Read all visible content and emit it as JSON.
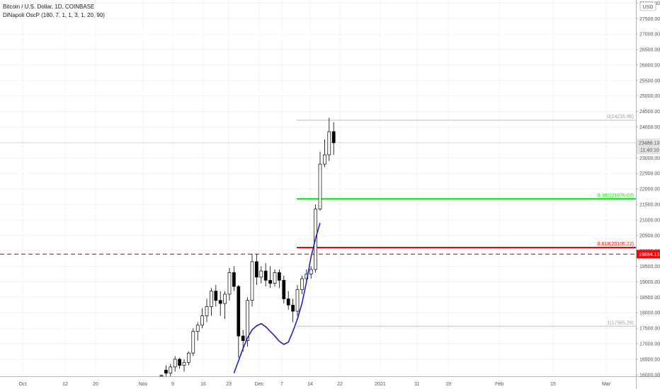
{
  "header": {
    "title": "Bitcoin / U.S. Dollar, 1D, COINBASE",
    "indicator": "DiNapoli OscP (180, 7, 1, 1, 3, 1, 20, 90)"
  },
  "price_axis": {
    "currency": "USD",
    "last_price": "23488.13",
    "countdown": "11:40:10",
    "level_price": "19894.13"
  },
  "colors": {
    "candle_up": "#ffffff",
    "candle_down": "#000000",
    "fib_top": "#bdbdbd",
    "fib_382": "#00e600",
    "fib_618": "#ff0000",
    "level_dashed": "#ff0000",
    "oscillator": "#1f1fd0",
    "grid": "#f0f3fa"
  },
  "chart_data": {
    "type": "candlestick",
    "y_range": [
      15950,
      28100
    ],
    "y_ticks": [
      16000,
      16500,
      17000,
      17500,
      18000,
      18500,
      19000,
      19500,
      20000,
      20500,
      21000,
      21500,
      22000,
      22500,
      23000,
      23500,
      24000,
      24500,
      25000,
      25500,
      26000,
      26500,
      27000,
      27500,
      28000
    ],
    "x_ticks": [
      "Oct",
      "12",
      "20",
      "Nov",
      "9",
      "16",
      "23",
      "Dec",
      "7",
      "14",
      "22",
      "2021",
      "11",
      "19",
      "Feb",
      "15",
      "Mar"
    ],
    "candles": [
      {
        "o": 15950,
        "h": 16000,
        "l": 15950,
        "c": 15980
      },
      {
        "o": 16150,
        "h": 16300,
        "l": 15950,
        "c": 16050
      },
      {
        "o": 16050,
        "h": 16350,
        "l": 15950,
        "c": 16250
      },
      {
        "o": 16250,
        "h": 16600,
        "l": 16100,
        "c": 16500
      },
      {
        "o": 16500,
        "h": 16550,
        "l": 16200,
        "c": 16300
      },
      {
        "o": 16300,
        "h": 16500,
        "l": 16100,
        "c": 16400
      },
      {
        "o": 16400,
        "h": 16750,
        "l": 16300,
        "c": 16700
      },
      {
        "o": 16700,
        "h": 17500,
        "l": 16600,
        "c": 17400
      },
      {
        "o": 17400,
        "h": 17700,
        "l": 17100,
        "c": 17600
      },
      {
        "o": 17600,
        "h": 18150,
        "l": 17500,
        "c": 17900
      },
      {
        "o": 17900,
        "h": 18450,
        "l": 17700,
        "c": 18200
      },
      {
        "o": 18200,
        "h": 18800,
        "l": 17900,
        "c": 18700
      },
      {
        "o": 18700,
        "h": 18900,
        "l": 18200,
        "c": 18400
      },
      {
        "o": 18400,
        "h": 18700,
        "l": 17900,
        "c": 18300
      },
      {
        "o": 18300,
        "h": 18700,
        "l": 17800,
        "c": 18600
      },
      {
        "o": 18600,
        "h": 19450,
        "l": 18400,
        "c": 19300
      },
      {
        "o": 19300,
        "h": 19500,
        "l": 18700,
        "c": 18850
      },
      {
        "o": 18850,
        "h": 18900,
        "l": 16550,
        "c": 17250
      },
      {
        "o": 17250,
        "h": 17450,
        "l": 16750,
        "c": 17100
      },
      {
        "o": 17100,
        "h": 18500,
        "l": 16900,
        "c": 18400
      },
      {
        "o": 18400,
        "h": 19900,
        "l": 18200,
        "c": 19650
      },
      {
        "o": 19650,
        "h": 19900,
        "l": 18900,
        "c": 19150
      },
      {
        "o": 19150,
        "h": 19500,
        "l": 18950,
        "c": 19350
      },
      {
        "o": 19350,
        "h": 19600,
        "l": 18850,
        "c": 19050
      },
      {
        "o": 19050,
        "h": 19500,
        "l": 18800,
        "c": 18950
      },
      {
        "o": 18950,
        "h": 19400,
        "l": 18850,
        "c": 19300
      },
      {
        "o": 19300,
        "h": 19400,
        "l": 18800,
        "c": 19050
      },
      {
        "o": 19050,
        "h": 19200,
        "l": 18300,
        "c": 18450
      },
      {
        "o": 18450,
        "h": 18700,
        "l": 18100,
        "c": 18250
      },
      {
        "o": 18250,
        "h": 18450,
        "l": 17700,
        "c": 18050
      },
      {
        "o": 18050,
        "h": 18900,
        "l": 17900,
        "c": 18750
      },
      {
        "o": 18750,
        "h": 19200,
        "l": 18600,
        "c": 19100
      },
      {
        "o": 19100,
        "h": 19400,
        "l": 18950,
        "c": 19250
      },
      {
        "o": 19250,
        "h": 19500,
        "l": 19100,
        "c": 19400
      },
      {
        "o": 19400,
        "h": 21500,
        "l": 19300,
        "c": 21350
      },
      {
        "o": 21350,
        "h": 23200,
        "l": 21300,
        "c": 22800
      },
      {
        "o": 22800,
        "h": 23600,
        "l": 22700,
        "c": 23100
      },
      {
        "o": 23100,
        "h": 24300,
        "l": 22900,
        "c": 23850
      },
      {
        "o": 23850,
        "h": 24150,
        "l": 23100,
        "c": 23488
      }
    ],
    "oscillator": [
      {
        "i": 16,
        "v": 16050
      },
      {
        "i": 17,
        "v": 16450
      },
      {
        "i": 18,
        "v": 16850
      },
      {
        "i": 19,
        "v": 17200
      },
      {
        "i": 20,
        "v": 17450
      },
      {
        "i": 21,
        "v": 17580
      },
      {
        "i": 22,
        "v": 17650
      },
      {
        "i": 23,
        "v": 17550
      },
      {
        "i": 24,
        "v": 17400
      },
      {
        "i": 25,
        "v": 17250
      },
      {
        "i": 26,
        "v": 17080
      },
      {
        "i": 27,
        "v": 16980
      },
      {
        "i": 28,
        "v": 17050
      },
      {
        "i": 29,
        "v": 17400
      },
      {
        "i": 30,
        "v": 17800
      },
      {
        "i": 31,
        "v": 18300
      },
      {
        "i": 32,
        "v": 19000
      },
      {
        "i": 33,
        "v": 19800
      },
      {
        "i": 34,
        "v": 20400
      },
      {
        "i": 35,
        "v": 20900
      }
    ],
    "fib_levels": [
      {
        "label": "0(24216.96)",
        "price": 24216.96,
        "color": "#bdbdbd",
        "width": 1
      },
      {
        "label": "0.382(21676.02)",
        "price": 21676.02,
        "color": "#00e600",
        "width": 2
      },
      {
        "label": "0.618(20106.22)",
        "price": 20106.22,
        "color": "#ff0000",
        "width": 2
      },
      {
        "label": "1(17565.29)",
        "price": 17565.29,
        "color": "#bdbdbd",
        "width": 1
      }
    ],
    "dashed_level": 19894.13
  }
}
